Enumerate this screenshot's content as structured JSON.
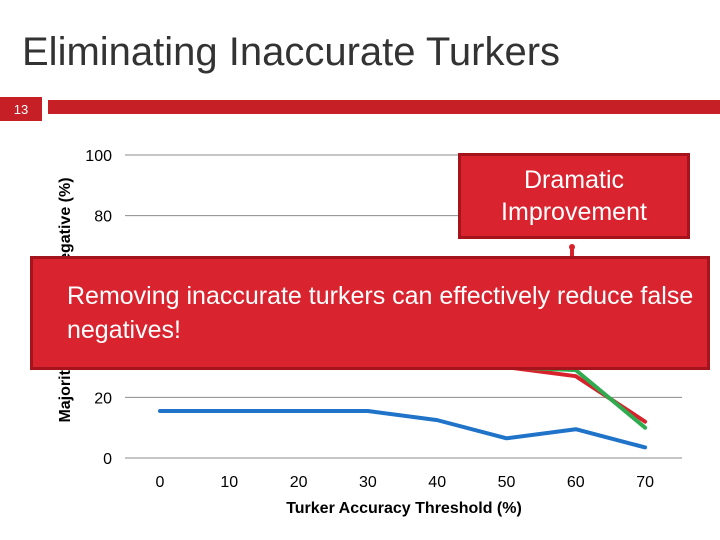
{
  "slide": {
    "title": "Eliminating Inaccurate Turkers",
    "number": "13"
  },
  "callouts": {
    "top": "Dramatic Improvement",
    "main": "Removing inaccurate turkers can effectively reduce false negatives!"
  },
  "colors": {
    "accent": "#c62026",
    "callout": "#d9232e"
  },
  "chart_data": {
    "type": "line",
    "xlabel": "Turker Accuracy Threshold (%)",
    "ylabel": "Majority Vote False Negative (%)",
    "x": [
      0,
      10,
      20,
      30,
      40,
      50,
      60,
      70
    ],
    "ylim": [
      0,
      100
    ],
    "yticks": [
      0,
      20,
      80,
      100
    ],
    "grid": true,
    "series": [
      {
        "color": "#1f73c8",
        "values": [
          15.5,
          15.5,
          15.5,
          15.5,
          12.5,
          6.5,
          9.5,
          3.5
        ]
      },
      {
        "color": "#d7222b",
        "values": [
          null,
          null,
          null,
          null,
          null,
          30,
          27,
          12
        ]
      },
      {
        "color": "#2eaa4f",
        "values": [
          null,
          null,
          null,
          null,
          null,
          30,
          29,
          10
        ]
      }
    ]
  }
}
